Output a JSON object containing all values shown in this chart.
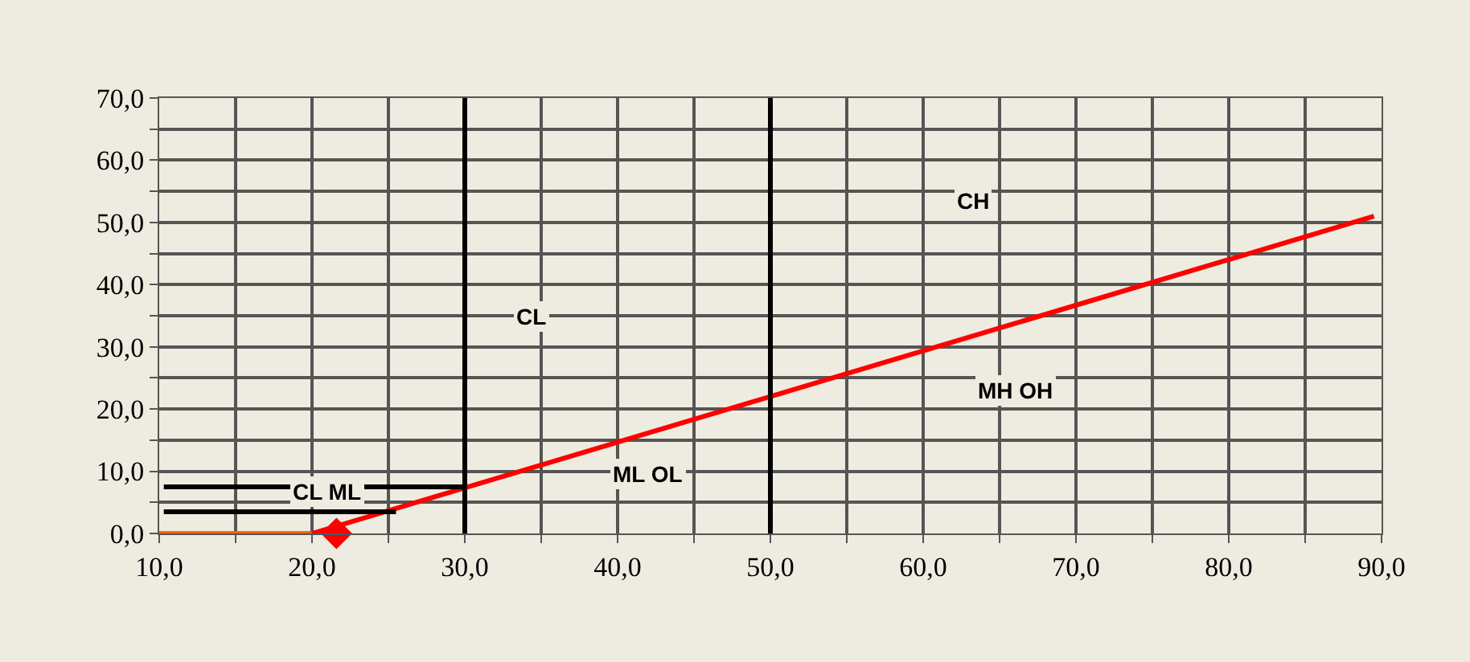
{
  "chart_data": {
    "type": "line",
    "xlim": [
      10,
      90
    ],
    "ylim": [
      0,
      70
    ],
    "xticks": [
      {
        "value": 10,
        "label": "10,0"
      },
      {
        "value": 15,
        "label": null
      },
      {
        "value": 20,
        "label": "20,0"
      },
      {
        "value": 25,
        "label": null
      },
      {
        "value": 30,
        "label": "30,0"
      },
      {
        "value": 35,
        "label": null
      },
      {
        "value": 40,
        "label": "40,0"
      },
      {
        "value": 45,
        "label": null
      },
      {
        "value": 50,
        "label": "50,0"
      },
      {
        "value": 55,
        "label": null
      },
      {
        "value": 60,
        "label": "60,0"
      },
      {
        "value": 65,
        "label": null
      },
      {
        "value": 70,
        "label": "70,0"
      },
      {
        "value": 75,
        "label": null
      },
      {
        "value": 80,
        "label": "80,0"
      },
      {
        "value": 85,
        "label": null
      },
      {
        "value": 90,
        "label": "90,0"
      }
    ],
    "yticks": [
      {
        "value": 0,
        "label": "0,0"
      },
      {
        "value": 5,
        "label": null
      },
      {
        "value": 10,
        "label": "10,0"
      },
      {
        "value": 15,
        "label": null
      },
      {
        "value": 20,
        "label": "20,0"
      },
      {
        "value": 25,
        "label": null
      },
      {
        "value": 30,
        "label": "30,0"
      },
      {
        "value": 35,
        "label": null
      },
      {
        "value": 40,
        "label": "40,0"
      },
      {
        "value": 45,
        "label": null
      },
      {
        "value": 50,
        "label": "50,0"
      },
      {
        "value": 55,
        "label": null
      },
      {
        "value": 60,
        "label": "60,0"
      },
      {
        "value": 65,
        "label": null
      },
      {
        "value": 70,
        "label": "70,0"
      }
    ],
    "grid": true,
    "series": [
      {
        "color": "#ff6600",
        "x": [
          10,
          20
        ],
        "values": [
          0,
          0
        ]
      },
      {
        "color": "#ff0000",
        "x": [
          20,
          89.5
        ],
        "values": [
          0,
          51
        ]
      },
      {
        "color": "#000000",
        "x": [
          30,
          30
        ],
        "values": [
          0,
          70
        ]
      },
      {
        "color": "#000000",
        "x": [
          50,
          50
        ],
        "values": [
          0,
          70
        ]
      },
      {
        "color": "#000000",
        "x": [
          10.3,
          30
        ],
        "values": [
          7.5,
          7.5
        ]
      },
      {
        "color": "#000000",
        "x": [
          10.3,
          25.5
        ],
        "values": [
          3.5,
          3.5
        ]
      },
      {
        "type": "scatter",
        "marker": "diamond",
        "color": "#ff0000",
        "x": [
          21.6
        ],
        "values": [
          0
        ]
      }
    ],
    "annotations": [
      "CL",
      "CL ML",
      "ML OL",
      "CH",
      "MH OH"
    ]
  }
}
